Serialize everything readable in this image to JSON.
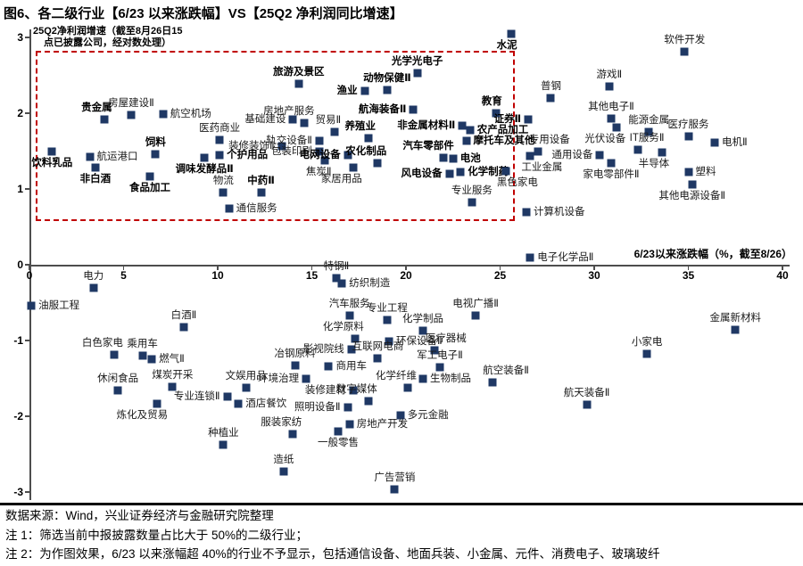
{
  "title": "图6、各二级行业【6/23 以来涨跌幅】VS【25Q2 净利润同比增速】",
  "chart_data": {
    "type": "scatter",
    "xlabel": "6/23以来涨跌幅（%，截至8/26）",
    "ylabel_line1": "25Q2净利润增速（截至8月26日15",
    "ylabel_line2": "点已披露公司，经对数处理）",
    "xlim": [
      0,
      40
    ],
    "ylim": [
      -3,
      3
    ],
    "x_ticks": [
      0,
      5,
      10,
      15,
      20,
      25,
      30,
      35,
      40
    ],
    "y_ticks": [
      3,
      2,
      1,
      0,
      -1,
      -2,
      -3
    ],
    "grid": false,
    "legend": false,
    "marker_color": "#1F3864",
    "highlight_box": {
      "x0": 0.35,
      "x1": 25.8,
      "y0": 0.58,
      "y1": 2.82,
      "color": "#C00000"
    },
    "points": [
      {
        "l": "饮料乳品",
        "x": 1.2,
        "y": 1.5,
        "p": "b",
        "bold": true
      },
      {
        "l": "航运港口",
        "x": 3.2,
        "y": 1.42,
        "p": "r",
        "bold": false
      },
      {
        "l": "非白酒",
        "x": 3.5,
        "y": 1.28,
        "p": "b",
        "bold": true
      },
      {
        "l": "贵金属",
        "x": 4.0,
        "y": 1.92,
        "p": "al",
        "bold": true
      },
      {
        "l": "房屋建设Ⅱ",
        "x": 5.4,
        "y": 1.98,
        "p": "a",
        "bold": false
      },
      {
        "l": "航空机场",
        "x": 7.1,
        "y": 1.99,
        "p": "r",
        "bold": false
      },
      {
        "l": "饲料",
        "x": 6.7,
        "y": 1.46,
        "p": "a",
        "bold": true
      },
      {
        "l": "食品加工",
        "x": 6.4,
        "y": 1.17,
        "p": "b",
        "bold": true
      },
      {
        "l": "医药商业",
        "x": 10.1,
        "y": 1.65,
        "p": "a",
        "bold": false
      },
      {
        "l": "调味发酵品Ⅱ",
        "x": 9.3,
        "y": 1.41,
        "p": "b",
        "bold": true
      },
      {
        "l": "个护用品",
        "x": 10.1,
        "y": 1.45,
        "p": "r",
        "bold": true
      },
      {
        "l": "物流",
        "x": 10.3,
        "y": 0.95,
        "p": "a",
        "bold": false
      },
      {
        "l": "中药Ⅱ",
        "x": 12.3,
        "y": 0.95,
        "p": "a",
        "bold": true
      },
      {
        "l": "通信服务",
        "x": 10.6,
        "y": 0.74,
        "p": "r",
        "bold": false
      },
      {
        "l": "旅游及景区",
        "x": 14.3,
        "y": 2.39,
        "p": "a",
        "bold": true
      },
      {
        "l": "渔业",
        "x": 17.8,
        "y": 2.29,
        "p": "l",
        "bold": true
      },
      {
        "l": "动物保健Ⅱ",
        "x": 19.0,
        "y": 2.31,
        "p": "a",
        "bold": true
      },
      {
        "l": "光学光电子",
        "x": 20.6,
        "y": 2.53,
        "p": "a",
        "bold": true
      },
      {
        "l": "基础建设",
        "x": 14.0,
        "y": 1.92,
        "p": "l",
        "bold": false
      },
      {
        "l": "房地产服务",
        "x": 14.6,
        "y": 1.87,
        "p": "al",
        "bold": false
      },
      {
        "l": "贸易Ⅱ",
        "x": 16.2,
        "y": 1.75,
        "p": "al",
        "bold": false
      },
      {
        "l": "装修装饰Ⅱ",
        "x": 13.4,
        "y": 1.56,
        "p": "l",
        "bold": false
      },
      {
        "l": "轨交设备Ⅱ",
        "x": 15.4,
        "y": 1.64,
        "p": "l",
        "bold": false
      },
      {
        "l": "包装印刷",
        "x": 15.4,
        "y": 1.49,
        "p": "l",
        "bold": false
      },
      {
        "l": "焦炭Ⅱ",
        "x": 15.7,
        "y": 1.38,
        "p": "bl",
        "bold": false
      },
      {
        "l": "养殖业",
        "x": 18.0,
        "y": 1.67,
        "p": "al",
        "bold": true
      },
      {
        "l": "电网设备",
        "x": 16.9,
        "y": 1.45,
        "p": "l",
        "bold": true
      },
      {
        "l": "农化制品",
        "x": 18.5,
        "y": 1.34,
        "p": "al",
        "bold": true
      },
      {
        "l": "家居用品",
        "x": 17.2,
        "y": 1.28,
        "p": "bl",
        "bold": false
      },
      {
        "l": "航海装备Ⅱ",
        "x": 20.4,
        "y": 2.05,
        "p": "l",
        "bold": true
      },
      {
        "l": "非金属材料Ⅱ",
        "x": 23.0,
        "y": 1.84,
        "p": "l",
        "bold": true
      },
      {
        "l": "农产品加工",
        "x": 23.4,
        "y": 1.78,
        "p": "r",
        "bold": true
      },
      {
        "l": "摩托车及其他",
        "x": 23.2,
        "y": 1.63,
        "p": "r",
        "bold": true
      },
      {
        "l": "汽车零部件",
        "x": 22.0,
        "y": 1.41,
        "p": "al",
        "bold": true
      },
      {
        "l": "电池",
        "x": 22.5,
        "y": 1.4,
        "p": "r",
        "bold": true
      },
      {
        "l": "教育",
        "x": 24.8,
        "y": 2.0,
        "p": "al",
        "bold": true
      },
      {
        "l": "证券Ⅱ",
        "x": 26.5,
        "y": 1.92,
        "p": "l",
        "bold": true
      },
      {
        "l": "水泥",
        "x": 25.6,
        "y": 3.05,
        "p": "bl",
        "bold": true
      },
      {
        "l": "风电设备",
        "x": 22.3,
        "y": 1.2,
        "p": "l",
        "bold": true
      },
      {
        "l": "化学制药",
        "x": 22.9,
        "y": 1.22,
        "p": "r",
        "bold": true
      },
      {
        "l": "专业服务",
        "x": 23.5,
        "y": 0.82,
        "p": "a",
        "bold": false
      },
      {
        "l": "软件开发",
        "x": 34.8,
        "y": 2.81,
        "p": "a",
        "bold": false
      },
      {
        "l": "游戏Ⅱ",
        "x": 30.8,
        "y": 2.35,
        "p": "a",
        "bold": false
      },
      {
        "l": "普钢",
        "x": 27.7,
        "y": 2.2,
        "p": "a",
        "bold": false
      },
      {
        "l": "其他电子Ⅱ",
        "x": 30.9,
        "y": 1.93,
        "p": "a",
        "bold": false
      },
      {
        "l": "能源金属",
        "x": 32.9,
        "y": 1.75,
        "p": "a",
        "bold": false
      },
      {
        "l": "医疗服务",
        "x": 35.0,
        "y": 1.7,
        "p": "a",
        "bold": false
      },
      {
        "l": "电机Ⅱ",
        "x": 36.4,
        "y": 1.61,
        "p": "r",
        "bold": false
      },
      {
        "l": "光伏设备",
        "x": 31.2,
        "y": 1.81,
        "p": "bl",
        "bold": false
      },
      {
        "l": "IT服务Ⅱ",
        "x": 32.3,
        "y": 1.52,
        "p": "ar",
        "bold": false
      },
      {
        "l": "半导体",
        "x": 33.6,
        "y": 1.48,
        "p": "bl",
        "bold": false
      },
      {
        "l": "塑料",
        "x": 35.0,
        "y": 1.22,
        "p": "r",
        "bold": false
      },
      {
        "l": "其他电源设备Ⅱ",
        "x": 35.2,
        "y": 1.06,
        "p": "b",
        "bold": false
      },
      {
        "l": "专用设备",
        "x": 27.0,
        "y": 1.49,
        "p": "ar",
        "bold": false
      },
      {
        "l": "通用设备",
        "x": 30.3,
        "y": 1.45,
        "p": "l",
        "bold": false
      },
      {
        "l": "工业金属",
        "x": 26.6,
        "y": 1.44,
        "p": "br",
        "bold": false
      },
      {
        "l": "黑色家电",
        "x": 25.3,
        "y": 1.24,
        "p": "br",
        "bold": false
      },
      {
        "l": "家电零部件Ⅱ",
        "x": 30.9,
        "y": 1.34,
        "p": "b",
        "bold": false
      },
      {
        "l": "计算机设备",
        "x": 26.4,
        "y": 0.7,
        "p": "r",
        "bold": false
      },
      {
        "l": "电子化学品Ⅱ",
        "x": 26.6,
        "y": 0.09,
        "p": "r",
        "bold": false
      },
      {
        "l": "电力",
        "x": 3.4,
        "y": -0.31,
        "p": "a",
        "bold": false
      },
      {
        "l": "油服工程",
        "x": 0.1,
        "y": -0.54,
        "p": "r",
        "bold": false
      },
      {
        "l": "特钢Ⅱ",
        "x": 16.3,
        "y": -0.18,
        "p": "a",
        "bold": false
      },
      {
        "l": "纺织制造",
        "x": 16.6,
        "y": -0.25,
        "p": "r",
        "bold": false
      },
      {
        "l": "白酒Ⅱ",
        "x": 8.2,
        "y": -0.82,
        "p": "a",
        "bold": false
      },
      {
        "l": "白色家电",
        "x": 4.5,
        "y": -1.19,
        "p": "al",
        "bold": false
      },
      {
        "l": "乘用车",
        "x": 6.0,
        "y": -1.2,
        "p": "a",
        "bold": false
      },
      {
        "l": "燃气Ⅱ",
        "x": 6.5,
        "y": -1.25,
        "p": "r",
        "bold": false
      },
      {
        "l": "休闲食品",
        "x": 4.7,
        "y": -1.66,
        "p": "a",
        "bold": false
      },
      {
        "l": "煤炭开采",
        "x": 7.6,
        "y": -1.61,
        "p": "a",
        "bold": false
      },
      {
        "l": "专业连锁Ⅱ",
        "x": 10.5,
        "y": -1.74,
        "p": "l",
        "bold": false
      },
      {
        "l": "炼化及贸易",
        "x": 6.8,
        "y": -1.84,
        "p": "bl",
        "bold": false
      },
      {
        "l": "酒店餐饮",
        "x": 11.1,
        "y": -1.84,
        "p": "r",
        "bold": false
      },
      {
        "l": "文娱用品",
        "x": 11.5,
        "y": -1.62,
        "p": "a",
        "bold": false
      },
      {
        "l": "环境治理",
        "x": 14.7,
        "y": -1.51,
        "p": "l",
        "bold": false
      },
      {
        "l": "种植业",
        "x": 10.3,
        "y": -2.38,
        "p": "a",
        "bold": false
      },
      {
        "l": "服装家纺",
        "x": 14.0,
        "y": -2.24,
        "p": "al",
        "bold": false
      },
      {
        "l": "造纸",
        "x": 13.5,
        "y": -2.73,
        "p": "a",
        "bold": false
      },
      {
        "l": "汽车服务",
        "x": 17.0,
        "y": -0.67,
        "p": "a",
        "bold": false
      },
      {
        "l": "专业工程",
        "x": 19.0,
        "y": -0.73,
        "p": "a",
        "bold": false
      },
      {
        "l": "电视广播Ⅱ",
        "x": 23.7,
        "y": -0.67,
        "p": "a",
        "bold": false
      },
      {
        "l": "化学制品",
        "x": 20.9,
        "y": -0.87,
        "p": "a",
        "bold": false
      },
      {
        "l": "化学原料",
        "x": 17.3,
        "y": -0.98,
        "p": "al",
        "bold": false
      },
      {
        "l": "环保设备Ⅱ",
        "x": 19.1,
        "y": -1.01,
        "p": "r",
        "bold": false
      },
      {
        "l": "医疗器械",
        "x": 21.5,
        "y": -1.13,
        "p": "ar",
        "bold": false
      },
      {
        "l": "冶钢原料",
        "x": 14.1,
        "y": -1.33,
        "p": "a",
        "bold": false
      },
      {
        "l": "影视院线",
        "x": 17.1,
        "y": -1.12,
        "p": "l",
        "bold": false
      },
      {
        "l": "互联网电商",
        "x": 18.5,
        "y": -1.24,
        "p": "a",
        "bold": false
      },
      {
        "l": "商用车",
        "x": 15.9,
        "y": -1.34,
        "p": "r",
        "bold": false
      },
      {
        "l": "化学纤维",
        "x": 20.1,
        "y": -1.62,
        "p": "al",
        "bold": false
      },
      {
        "l": "军工电子Ⅱ",
        "x": 21.8,
        "y": -1.35,
        "p": "a",
        "bold": false
      },
      {
        "l": "生物制品",
        "x": 20.9,
        "y": -1.51,
        "p": "r",
        "bold": false
      },
      {
        "l": "航空装备Ⅱ",
        "x": 24.6,
        "y": -1.55,
        "p": "ar",
        "bold": false
      },
      {
        "l": "装修建材",
        "x": 17.2,
        "y": -1.66,
        "p": "l",
        "bold": false
      },
      {
        "l": "数字媒体",
        "x": 18.0,
        "y": -1.8,
        "p": "al",
        "bold": false
      },
      {
        "l": "照明设备Ⅱ",
        "x": 16.9,
        "y": -1.88,
        "p": "l",
        "bold": false
      },
      {
        "l": "多元金融",
        "x": 19.7,
        "y": -1.99,
        "p": "r",
        "bold": false
      },
      {
        "l": "房地产开发",
        "x": 17.0,
        "y": -2.11,
        "p": "r",
        "bold": false
      },
      {
        "l": "一般零售",
        "x": 16.4,
        "y": -2.2,
        "p": "b",
        "bold": false
      },
      {
        "l": "广告营销",
        "x": 19.4,
        "y": -2.96,
        "p": "a",
        "bold": false
      },
      {
        "l": "航天装备Ⅱ",
        "x": 29.6,
        "y": -1.85,
        "p": "a",
        "bold": false
      },
      {
        "l": "小家电",
        "x": 32.8,
        "y": -1.18,
        "p": "a",
        "bold": false
      },
      {
        "l": "金属新材料",
        "x": 37.5,
        "y": -0.86,
        "p": "a",
        "bold": false
      }
    ]
  },
  "footer": {
    "source": "数据来源：Wind，兴业证券经济与金融研究院整理",
    "note1": "注 1：筛选当前中报披露数量占比大于 50%的二级行业；",
    "note2": "注 2：为作图效果，6/23 以来涨幅超 40%的行业不予显示，包括通信设备、地面兵装、小金属、元件、消费电子、玻璃玻纤"
  }
}
